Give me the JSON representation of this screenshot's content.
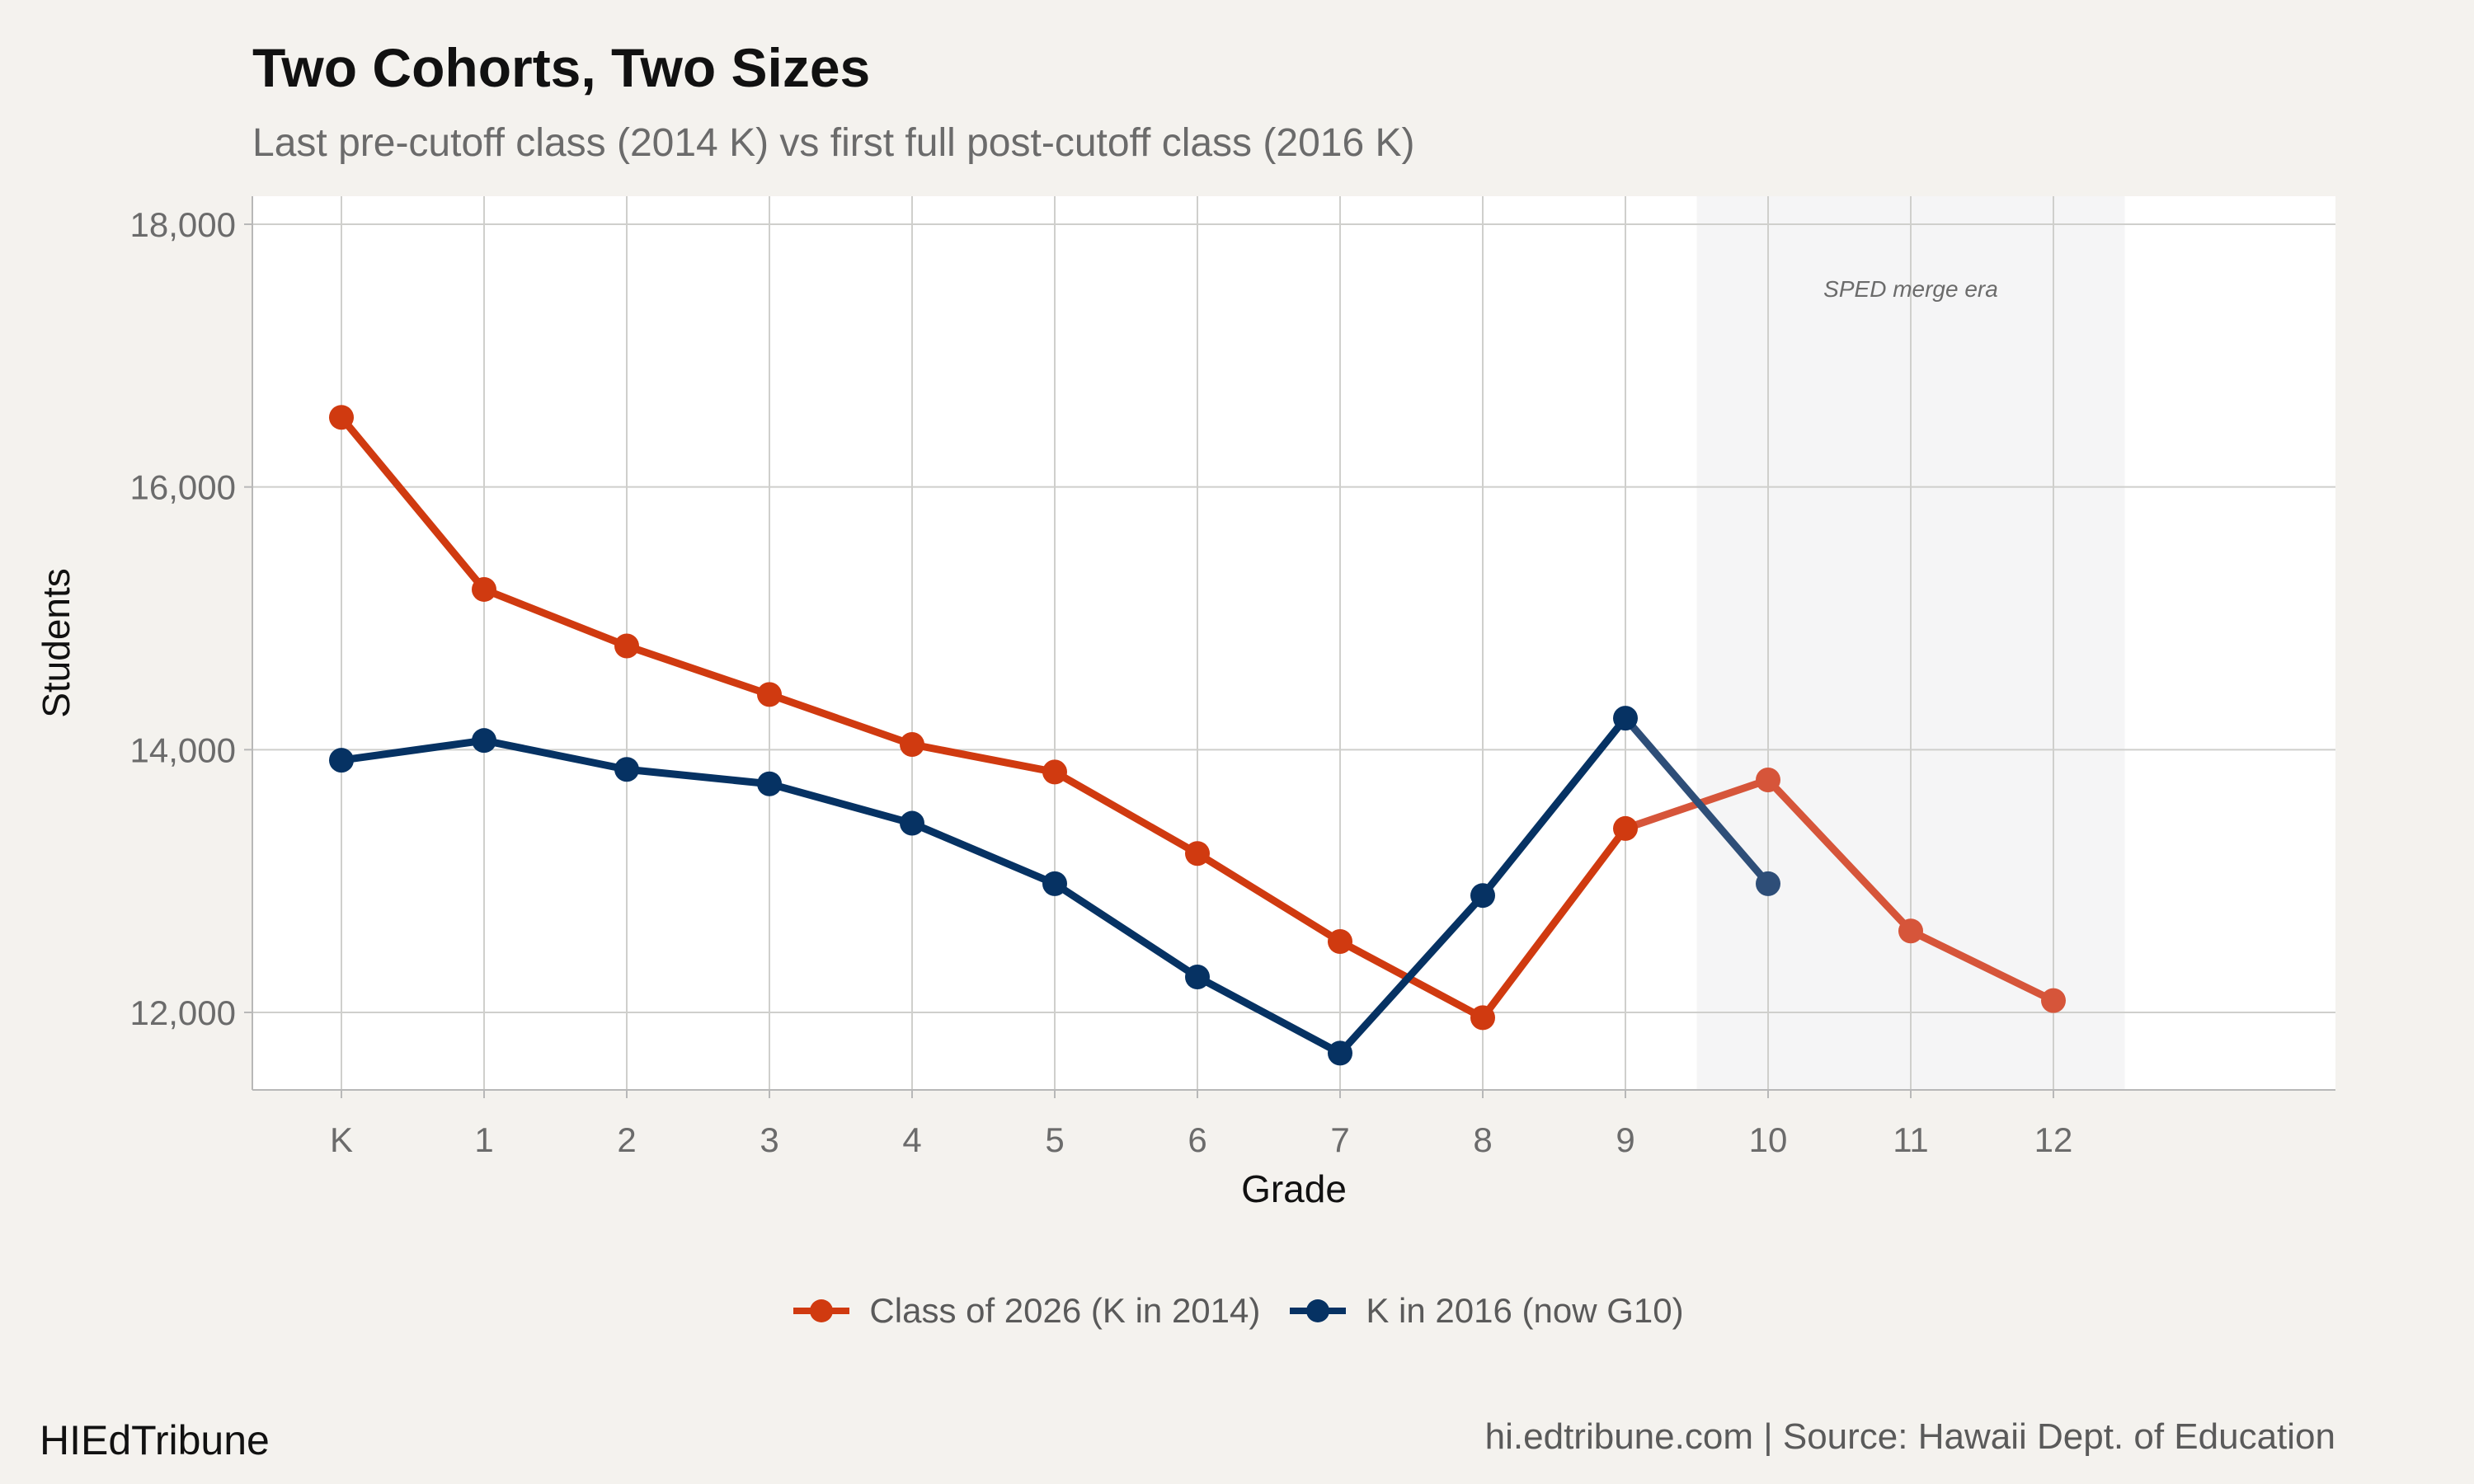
{
  "chart_data": {
    "type": "line",
    "title": "Two Cohorts, Two Sizes",
    "subtitle": "Last pre-cutoff class (2014 K) vs first full post-cutoff class (2016 K)",
    "xlabel": "Grade",
    "ylabel": "Students",
    "categories": [
      "K",
      "1",
      "2",
      "3",
      "4",
      "5",
      "6",
      "7",
      "8",
      "9",
      "10",
      "11",
      "12"
    ],
    "ylim": [
      11400,
      18200
    ],
    "yticks": [
      12000,
      14000,
      16000,
      18000
    ],
    "ytick_labels": [
      "12,000",
      "14,000",
      "16,000",
      "18,000"
    ],
    "grid": true,
    "legend_position": "bottom",
    "annotation": {
      "label": "SPED merge era",
      "x_start": "10",
      "x_end": "11",
      "shaded_categories_from": 9.5,
      "shaded_categories_to": 12.5
    },
    "series": [
      {
        "name": "Class of 2026 (K in 2014)",
        "color": "#d03a10",
        "faded_color": "#d6553a",
        "x": [
          "K",
          "1",
          "2",
          "3",
          "4",
          "5",
          "6",
          "7",
          "8",
          "9",
          "10",
          "11",
          "12"
        ],
        "values": [
          16530,
          15220,
          14790,
          14420,
          14040,
          13830,
          13210,
          12540,
          11960,
          13400,
          13770,
          12620,
          12090
        ]
      },
      {
        "name": "K in 2016 (now G10)",
        "color": "#063263",
        "faded_color": "#2e4e78",
        "x": [
          "K",
          "1",
          "2",
          "3",
          "4",
          "5",
          "6",
          "7",
          "8",
          "9",
          "10"
        ],
        "values": [
          13920,
          14070,
          13850,
          13740,
          13440,
          12980,
          12270,
          11690,
          12890,
          14240,
          12980
        ]
      }
    ]
  },
  "legend": {
    "items": [
      {
        "label": "Class of 2026 (K in 2014)",
        "color": "#d03a10"
      },
      {
        "label": "K in 2016 (now G10)",
        "color": "#063263"
      }
    ]
  },
  "footer": {
    "brand": "HIEdTribune",
    "source": "hi.edtribune.com | Source: Hawaii Dept. of Education"
  }
}
